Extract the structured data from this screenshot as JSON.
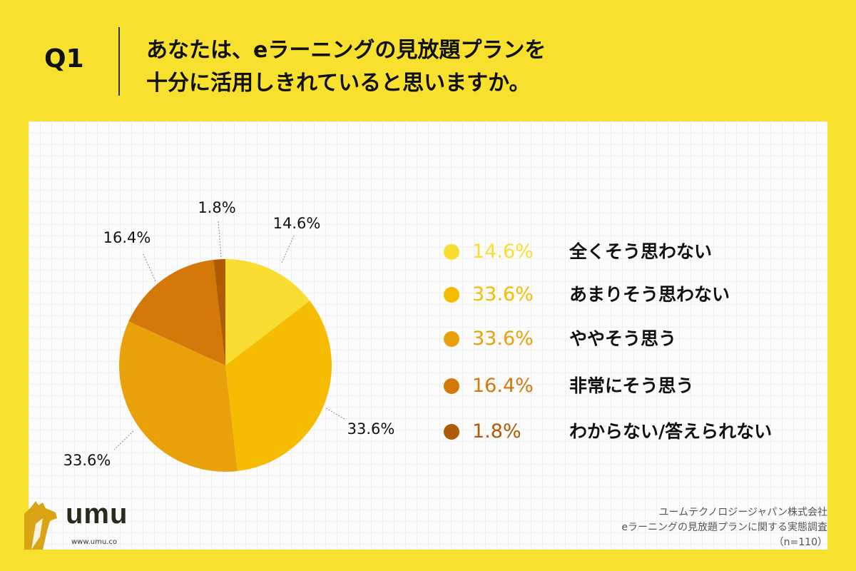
{
  "question": {
    "label": "Q1",
    "title_line1": "あなたは、eラーニングの見放題プランを",
    "title_line2": "十分に活用しきれていると思いますか。"
  },
  "chart_data": {
    "type": "pie",
    "slices": [
      {
        "label": "全くそう思わない",
        "value": 14.6,
        "display": "14.6%",
        "color": "#f9dd33"
      },
      {
        "label": "あまりそう思わない",
        "value": 33.6,
        "display": "33.6%",
        "color": "#f6bc02"
      },
      {
        "label": "ややそう思う",
        "value": 33.6,
        "display": "33.6%",
        "color": "#e9a10b"
      },
      {
        "label": "非常にそう思う",
        "value": 16.4,
        "display": "16.4%",
        "color": "#d4780a"
      },
      {
        "label": "わからない/答えられない",
        "value": 1.8,
        "display": "1.8%",
        "color": "#b05b05"
      }
    ],
    "start_angle": "12 o'clock, clockwise",
    "legend_placement": "right"
  },
  "logo": {
    "text": "umu",
    "url": "www.umu.co"
  },
  "source": {
    "line1": "ユームテクノロジージャパン株式会社",
    "line2": "eラーニングの見放題プランに関する実態調査",
    "line3": "（n=110）"
  }
}
